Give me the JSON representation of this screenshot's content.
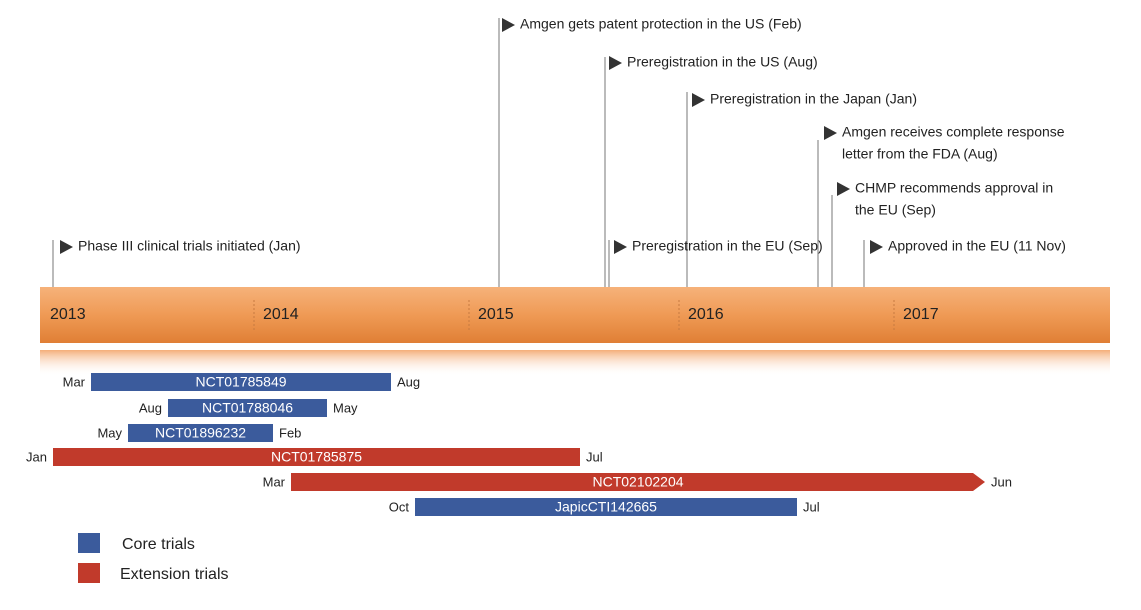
{
  "years": [
    "2013",
    "2014",
    "2015",
    "2016",
    "2017"
  ],
  "events": [
    {
      "lines": [
        "Phase III clinical trials initiated (Jan)"
      ]
    },
    {
      "lines": [
        "Amgen gets patent protection in the US (Feb)"
      ]
    },
    {
      "lines": [
        "Preregistration in the US (Aug)"
      ]
    },
    {
      "lines": [
        "Preregistration in the Japan (Jan)"
      ]
    },
    {
      "lines": [
        "Amgen receives complete response",
        "letter from the FDA (Aug)"
      ]
    },
    {
      "lines": [
        "CHMP recommends approval in",
        "the EU (Sep)"
      ]
    },
    {
      "lines": [
        "Preregistration in the EU (Sep)"
      ]
    },
    {
      "lines": [
        "Approved in the EU (11 Nov)"
      ]
    }
  ],
  "trials": [
    {
      "name": "NCT01785849",
      "start": "Mar",
      "end": "Aug",
      "color": "#3b5b9c"
    },
    {
      "name": "NCT01788046",
      "start": "Aug",
      "end": "May",
      "color": "#3b5b9c"
    },
    {
      "name": "NCT01896232",
      "start": "May",
      "end": "Feb",
      "color": "#3b5b9c"
    },
    {
      "name": "NCT01785875",
      "start": "Jan",
      "end": "Jul",
      "color": "#c13a2b"
    },
    {
      "name": "NCT02102204",
      "start": "Mar",
      "end": "Jun",
      "color": "#c13a2b"
    },
    {
      "name": "JapicCTI142665",
      "start": "Oct",
      "end": "Jul",
      "color": "#3b5b9c"
    }
  ],
  "legend": [
    {
      "label": "Core trials",
      "color": "#3b5b9c"
    },
    {
      "label": "Extension trials",
      "color": "#c13a2b"
    }
  ]
}
